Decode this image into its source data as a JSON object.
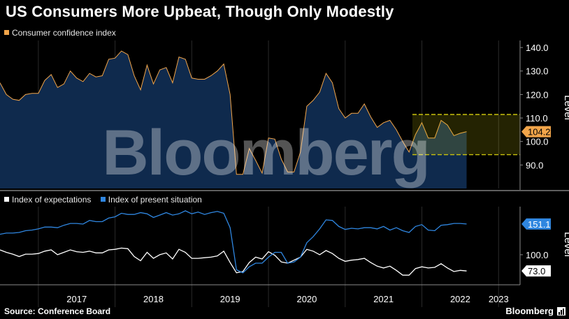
{
  "title": "US Consumers More Upbeat, Though Only Modestly",
  "source": "Source: Conference Board",
  "brand": "Bloomberg",
  "watermark": "Bloomberg",
  "brand_icon": "bar-chart-icon",
  "colors": {
    "background": "#000000",
    "confidence": "#f2a54a",
    "confidence_fill": "#0f2a4d",
    "expectations": "#ffffff",
    "present": "#2f86e0",
    "band": "#c9c20c",
    "grid": "#2a2a2a"
  },
  "chart_data": [
    {
      "type": "area",
      "title": "",
      "ylabel": "Level",
      "ylim": [
        80,
        143
      ],
      "yticks": [
        "140.0",
        "130.0",
        "120.0",
        "110.0",
        "100.0",
        "90.0"
      ],
      "ytick_values": [
        140,
        130,
        120,
        110,
        100,
        90
      ],
      "xlim": [
        2016.5,
        2023.28
      ],
      "xticks": [
        "2017",
        "2018",
        "2019",
        "2020",
        "2021",
        "2022",
        "2023"
      ],
      "xtick_values": [
        2017,
        2018,
        2019,
        2020,
        2021,
        2022,
        2023
      ],
      "band": {
        "low": 94.4,
        "high": 111.5
      },
      "last_value_label": "104.2",
      "series": [
        {
          "name": "Consumer confidence index",
          "values": [
            [
              2016.5,
              125.0
            ],
            [
              2016.583,
              120.0
            ],
            [
              2016.667,
              118.0
            ],
            [
              2016.75,
              117.5
            ],
            [
              2016.833,
              120.0
            ],
            [
              2016.917,
              120.5
            ],
            [
              2017.0,
              120.5
            ],
            [
              2017.083,
              126.0
            ],
            [
              2017.167,
              128.5
            ],
            [
              2017.25,
              123.0
            ],
            [
              2017.333,
              124.5
            ],
            [
              2017.417,
              130.0
            ],
            [
              2017.5,
              127.0
            ],
            [
              2017.583,
              125.5
            ],
            [
              2017.667,
              129.0
            ],
            [
              2017.75,
              127.5
            ],
            [
              2017.833,
              128.0
            ],
            [
              2017.917,
              135.0
            ],
            [
              2018.0,
              135.5
            ],
            [
              2018.083,
              138.5
            ],
            [
              2018.167,
              137.0
            ],
            [
              2018.25,
              128.0
            ],
            [
              2018.333,
              122.0
            ],
            [
              2018.417,
              132.5
            ],
            [
              2018.5,
              124.5
            ],
            [
              2018.583,
              130.5
            ],
            [
              2018.667,
              131.5
            ],
            [
              2018.75,
              125.0
            ],
            [
              2018.833,
              136.0
            ],
            [
              2018.917,
              135.0
            ],
            [
              2019.0,
              127.0
            ],
            [
              2019.083,
              126.5
            ],
            [
              2019.167,
              126.5
            ],
            [
              2019.25,
              128.0
            ],
            [
              2019.333,
              130.0
            ],
            [
              2019.417,
              133.0
            ],
            [
              2019.5,
              120.0
            ],
            [
              2019.583,
              86.0
            ],
            [
              2019.667,
              86.0
            ],
            [
              2019.75,
              97.0
            ],
            [
              2019.833,
              92.0
            ],
            [
              2019.917,
              86.5
            ],
            [
              2020.0,
              101.5
            ],
            [
              2020.083,
              101.0
            ],
            [
              2020.167,
              92.5
            ],
            [
              2020.25,
              87.0
            ],
            [
              2020.333,
              87.0
            ],
            [
              2020.417,
              95.5
            ],
            [
              2020.5,
              115.0
            ],
            [
              2020.583,
              117.5
            ],
            [
              2020.667,
              121.0
            ],
            [
              2020.75,
              129.0
            ],
            [
              2020.833,
              125.0
            ],
            [
              2020.917,
              114.0
            ],
            [
              2021.0,
              110.0
            ],
            [
              2021.083,
              112.0
            ],
            [
              2021.167,
              112.0
            ],
            [
              2021.25,
              116.0
            ],
            [
              2021.333,
              110.5
            ],
            [
              2021.417,
              106.0
            ],
            [
              2021.5,
              108.0
            ],
            [
              2021.583,
              109.0
            ],
            [
              2021.667,
              105.0
            ],
            [
              2021.75,
              100.0
            ],
            [
              2021.833,
              95.5
            ],
            [
              2021.917,
              103.0
            ],
            [
              2022.0,
              108.0
            ],
            [
              2022.083,
              101.5
            ],
            [
              2022.167,
              101.5
            ],
            [
              2022.25,
              109.0
            ],
            [
              2022.333,
              107.0
            ],
            [
              2022.417,
              102.5
            ],
            [
              2022.5,
              103.5
            ],
            [
              2022.583,
              104.2
            ]
          ]
        }
      ]
    },
    {
      "type": "line",
      "title": "",
      "ylabel": "Level",
      "ylim": [
        50,
        180
      ],
      "yticks": [
        "100.0"
      ],
      "ytick_values": [
        100
      ],
      "xlim": [
        2016.5,
        2023.28
      ],
      "xticks": [
        "2017",
        "2018",
        "2019",
        "2020",
        "2021",
        "2022",
        "2023"
      ],
      "xtick_values": [
        2017,
        2018,
        2019,
        2020,
        2021,
        2022,
        2023
      ],
      "series": [
        {
          "name": "Index of expectations",
          "color_key": "expectations",
          "last_value_label": "73.0",
          "values": [
            [
              2016.5,
              108
            ],
            [
              2016.583,
              104
            ],
            [
              2016.667,
              101
            ],
            [
              2016.75,
              97
            ],
            [
              2016.833,
              101
            ],
            [
              2016.917,
              101
            ],
            [
              2017.0,
              102
            ],
            [
              2017.083,
              106
            ],
            [
              2017.167,
              108
            ],
            [
              2017.25,
              100
            ],
            [
              2017.333,
              104
            ],
            [
              2017.417,
              108
            ],
            [
              2017.5,
              105
            ],
            [
              2017.583,
              104
            ],
            [
              2017.667,
              106
            ],
            [
              2017.75,
              103
            ],
            [
              2017.833,
              103
            ],
            [
              2017.917,
              108
            ],
            [
              2018.0,
              109
            ],
            [
              2018.083,
              111
            ],
            [
              2018.167,
              110
            ],
            [
              2018.25,
              97
            ],
            [
              2018.333,
              90
            ],
            [
              2018.417,
              104
            ],
            [
              2018.5,
              94
            ],
            [
              2018.583,
              100
            ],
            [
              2018.667,
              103
            ],
            [
              2018.75,
              93
            ],
            [
              2018.833,
              109
            ],
            [
              2018.917,
              104
            ],
            [
              2019.0,
              94
            ],
            [
              2019.083,
              94
            ],
            [
              2019.167,
              95
            ],
            [
              2019.25,
              96
            ],
            [
              2019.333,
              98
            ],
            [
              2019.417,
              106
            ],
            [
              2019.5,
              87
            ],
            [
              2019.583,
              70
            ],
            [
              2019.667,
              72
            ],
            [
              2019.75,
              87
            ],
            [
              2019.833,
              96
            ],
            [
              2019.917,
              93
            ],
            [
              2020.0,
              105
            ],
            [
              2020.083,
              99
            ],
            [
              2020.167,
              88
            ],
            [
              2020.25,
              86
            ],
            [
              2020.333,
              91
            ],
            [
              2020.417,
              96
            ],
            [
              2020.5,
              109
            ],
            [
              2020.583,
              106
            ],
            [
              2020.667,
              100
            ],
            [
              2020.75,
              107
            ],
            [
              2020.833,
              102
            ],
            [
              2020.917,
              94
            ],
            [
              2021.0,
              89
            ],
            [
              2021.083,
              91
            ],
            [
              2021.167,
              92
            ],
            [
              2021.25,
              94
            ],
            [
              2021.333,
              87
            ],
            [
              2021.417,
              81
            ],
            [
              2021.5,
              78
            ],
            [
              2021.583,
              81
            ],
            [
              2021.667,
              74
            ],
            [
              2021.75,
              66
            ],
            [
              2021.833,
              66
            ],
            [
              2021.917,
              77
            ],
            [
              2022.0,
              80
            ],
            [
              2022.083,
              78
            ],
            [
              2022.167,
              79
            ],
            [
              2022.25,
              85
            ],
            [
              2022.333,
              78
            ],
            [
              2022.417,
              72
            ],
            [
              2022.5,
              74
            ],
            [
              2022.583,
              73
            ]
          ]
        },
        {
          "name": "Index of present situation",
          "color_key": "present",
          "last_value_label": "151.1",
          "values": [
            [
              2016.5,
              134
            ],
            [
              2016.583,
              136
            ],
            [
              2016.667,
              136
            ],
            [
              2016.75,
              137
            ],
            [
              2016.833,
              140
            ],
            [
              2016.917,
              141
            ],
            [
              2017.0,
              143
            ],
            [
              2017.083,
              146
            ],
            [
              2017.167,
              146
            ],
            [
              2017.25,
              145
            ],
            [
              2017.333,
              149
            ],
            [
              2017.417,
              152
            ],
            [
              2017.5,
              152
            ],
            [
              2017.583,
              151
            ],
            [
              2017.667,
              157
            ],
            [
              2017.75,
              155
            ],
            [
              2017.833,
              155
            ],
            [
              2017.917,
              161
            ],
            [
              2018.0,
              163
            ],
            [
              2018.083,
              169
            ],
            [
              2018.167,
              167
            ],
            [
              2018.25,
              167
            ],
            [
              2018.333,
              170
            ],
            [
              2018.417,
              168
            ],
            [
              2018.5,
              162
            ],
            [
              2018.583,
              166
            ],
            [
              2018.667,
              170
            ],
            [
              2018.75,
              166
            ],
            [
              2018.833,
              168
            ],
            [
              2018.917,
              173
            ],
            [
              2019.0,
              168
            ],
            [
              2019.083,
              171
            ],
            [
              2019.167,
              167
            ],
            [
              2019.25,
              170
            ],
            [
              2019.333,
              172
            ],
            [
              2019.417,
              169
            ],
            [
              2019.5,
              145
            ],
            [
              2019.583,
              75
            ],
            [
              2019.667,
              70
            ],
            [
              2019.75,
              80
            ],
            [
              2019.833,
              86
            ],
            [
              2019.917,
              86
            ],
            [
              2020.0,
              96
            ],
            [
              2020.083,
              104
            ],
            [
              2020.167,
              104
            ],
            [
              2020.25,
              86
            ],
            [
              2020.333,
              88
            ],
            [
              2020.417,
              96
            ],
            [
              2020.5,
              120
            ],
            [
              2020.583,
              130
            ],
            [
              2020.667,
              143
            ],
            [
              2020.75,
              158
            ],
            [
              2020.833,
              157
            ],
            [
              2020.917,
              147
            ],
            [
              2021.0,
              142
            ],
            [
              2021.083,
              144
            ],
            [
              2021.167,
              143
            ],
            [
              2021.25,
              145
            ],
            [
              2021.333,
              145
            ],
            [
              2021.417,
              143
            ],
            [
              2021.5,
              147
            ],
            [
              2021.583,
              141
            ],
            [
              2021.667,
              145
            ],
            [
              2021.75,
              140
            ],
            [
              2021.833,
              137
            ],
            [
              2021.917,
              147
            ],
            [
              2022.0,
              150
            ],
            [
              2022.083,
              141
            ],
            [
              2022.167,
              140
            ],
            [
              2022.25,
              149
            ],
            [
              2022.333,
              150
            ],
            [
              2022.417,
              152
            ],
            [
              2022.5,
              152
            ],
            [
              2022.583,
              151.1
            ]
          ]
        }
      ]
    }
  ]
}
